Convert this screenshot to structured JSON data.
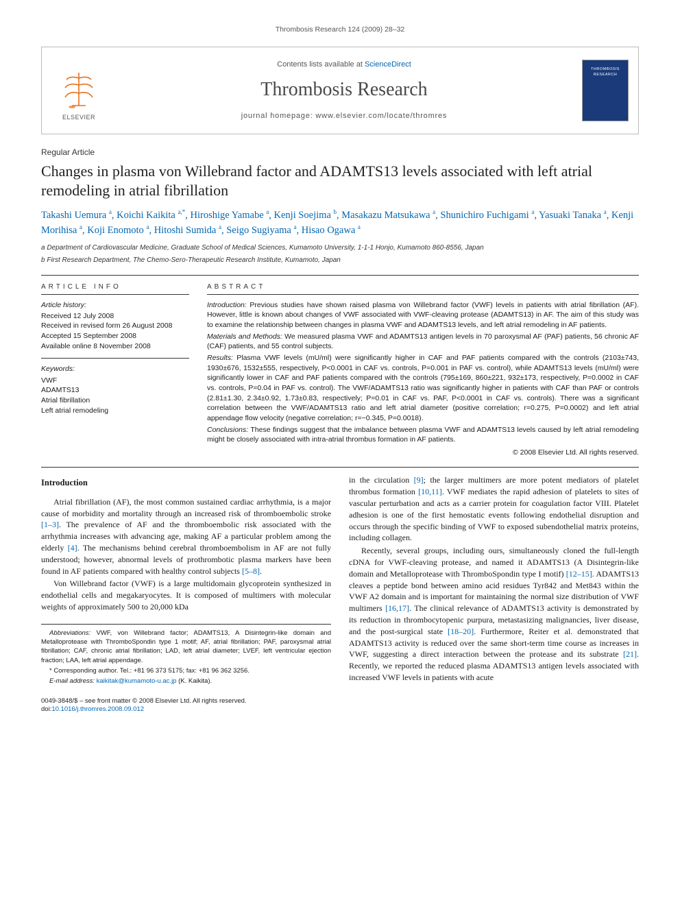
{
  "running_header": "Thrombosis Research 124 (2009) 28–32",
  "masthead": {
    "sd_prefix": "Contents lists available at ",
    "sd_link": "ScienceDirect",
    "journal": "Thrombosis Research",
    "homepage_prefix": "journal homepage: ",
    "homepage": "www.elsevier.com/locate/thromres",
    "publisher": "ELSEVIER",
    "cover_title": "THROMBOSIS RESEARCH"
  },
  "article": {
    "type": "Regular Article",
    "title": "Changes in plasma von Willebrand factor and ADAMTS13 levels associated with left atrial remodeling in atrial fibrillation",
    "authors_html": "Takashi Uemura <sup>a</sup>, Koichi Kaikita <sup>a,*</sup>, Hiroshige Yamabe <sup>a</sup>, Kenji Soejima <sup>b</sup>, Masakazu Matsukawa <sup>a</sup>, Shunichiro Fuchigami <sup>a</sup>, Yasuaki Tanaka <sup>a</sup>, Kenji Morihisa <sup>a</sup>, Koji Enomoto <sup>a</sup>, Hitoshi Sumida <sup>a</sup>, Seigo Sugiyama <sup>a</sup>, Hisao Ogawa <sup>a</sup>",
    "affiliations": [
      "a Department of Cardiovascular Medicine, Graduate School of Medical Sciences, Kumamoto University, 1-1-1 Honjo, Kumamoto 860-8556, Japan",
      "b First Research Department, The Chemo-Sero-Therapeutic Research Institute, Kumamoto, Japan"
    ]
  },
  "info": {
    "heading": "ARTICLE INFO",
    "history_label": "Article history:",
    "history": [
      "Received 12 July 2008",
      "Received in revised form 26 August 2008",
      "Accepted 15 September 2008",
      "Available online 8 November 2008"
    ],
    "keywords_label": "Keywords:",
    "keywords": [
      "VWF",
      "ADAMTS13",
      "Atrial fibrillation",
      "Left atrial remodeling"
    ]
  },
  "abstract": {
    "heading": "ABSTRACT",
    "paras": [
      {
        "lead": "Introduction:",
        "text": " Previous studies have shown raised plasma von Willebrand factor (VWF) levels in patients with atrial fibrillation (AF). However, little is known about changes of VWF associated with VWF-cleaving protease (ADAMTS13) in AF. The aim of this study was to examine the relationship between changes in plasma VWF and ADAMTS13 levels, and left atrial remodeling in AF patients."
      },
      {
        "lead": "Materials and Methods:",
        "text": " We measured plasma VWF and ADAMTS13 antigen levels in 70 paroxysmal AF (PAF) patients, 56 chronic AF (CAF) patients, and 55 control subjects."
      },
      {
        "lead": "Results:",
        "text": " Plasma VWF levels (mU/ml) were significantly higher in CAF and PAF patients compared with the controls (2103±743, 1930±676, 1532±555, respectively, P<0.0001 in CAF vs. controls, P=0.001 in PAF vs. control), while ADAMTS13 levels (mU/ml) were significantly lower in CAF and PAF patients compared with the controls (795±169, 860±221, 932±173, respectively, P=0.0002 in CAF vs. controls, P=0.04 in PAF vs. control). The VWF/ADAMTS13 ratio was significantly higher in patients with CAF than PAF or controls (2.81±1.30, 2.34±0.92, 1.73±0.83, respectively; P=0.01 in CAF vs. PAF, P<0.0001 in CAF vs. controls). There was a significant correlation between the VWF/ADAMTS13 ratio and left atrial diameter (positive correlation; r=0.275, P=0.0002) and left atrial appendage flow velocity (negative correlation; r=−0.345, P=0.0018)."
      },
      {
        "lead": "Conclusions:",
        "text": " These findings suggest that the imbalance between plasma VWF and ADAMTS13 levels caused by left atrial remodeling might be closely associated with intra-atrial thrombus formation in AF patients."
      }
    ],
    "copyright": "© 2008 Elsevier Ltd. All rights reserved."
  },
  "body": {
    "section_head": "Introduction",
    "p1": "Atrial fibrillation (AF), the most common sustained cardiac arrhythmia, is a major cause of morbidity and mortality through an increased risk of thromboembolic stroke [1–3]. The prevalence of AF and the thromboembolic risk associated with the arrhythmia increases with advancing age, making AF a particular problem among the elderly [4]. The mechanisms behind cerebral thromboembolism in AF are not fully understood; however, abnormal levels of prothrombotic plasma markers have been found in AF patients compared with healthy control subjects [5–8].",
    "p2": "Von Willebrand factor (VWF) is a large multidomain glycoprotein synthesized in endothelial cells and megakaryocytes. It is composed of multimers with molecular weights of approximately 500 to 20,000 kDa",
    "p3": "in the circulation [9]; the larger multimers are more potent mediators of platelet thrombus formation [10,11]. VWF mediates the rapid adhesion of platelets to sites of vascular perturbation and acts as a carrier protein for coagulation factor VIII. Platelet adhesion is one of the first hemostatic events following endothelial disruption and occurs through the specific binding of VWF to exposed subendothelial matrix proteins, including collagen.",
    "p4": "Recently, several groups, including ours, simultaneously cloned the full-length cDNA for VWF-cleaving protease, and named it ADAMTS13 (A Disintegrin-like domain and Metalloprotease with ThromboSpondin type I motif) [12–15]. ADAMTS13 cleaves a peptide bond between amino acid residues Tyr842 and Met843 within the VWF A2 domain and is important for maintaining the normal size distribution of VWF multimers [16,17]. The clinical relevance of ADAMTS13 activity is demonstrated by its reduction in thrombocytopenic purpura, metastasizing malignancies, liver disease, and the post-surgical state [18–20]. Furthermore, Reiter et al. demonstrated that ADAMTS13 activity is reduced over the same short-term time course as increases in VWF, suggesting a direct interaction between the protease and its substrate [21]. Recently, we reported the reduced plasma ADAMTS13 antigen levels associated with increased VWF levels in patients with acute"
  },
  "footnotes": {
    "abbrev_label": "Abbreviations:",
    "abbrev_text": " VWF, von Willebrand factor; ADAMTS13, A Disintegrin-like domain and Metalloprotease with ThromboSpondin type 1 motif; AF, atrial fibrillation; PAF, paroxysmal atrial fibrillation; CAF, chronic atrial fibrillation; LAD, left atrial diameter; LVEF, left ventricular ejection fraction; LAA, left atrial appendage.",
    "corr_label": "* Corresponding author.",
    "corr_text": " Tel.: +81 96 373 5175; fax: +81 96 362 3256.",
    "email_label": "E-mail address:",
    "email": "kaikitak@kumamoto-u.ac.jp",
    "email_suffix": " (K. Kaikita)."
  },
  "footer": {
    "left1": "0049-3848/$ – see front matter © 2008 Elsevier Ltd. All rights reserved.",
    "left2_prefix": "doi:",
    "doi": "10.1016/j.thromres.2008.09.012"
  },
  "colors": {
    "link": "#0066b3",
    "logo": "#e9711c",
    "cover": "#1a3a7a",
    "border": "#bbbbbb",
    "rule": "#333333"
  }
}
